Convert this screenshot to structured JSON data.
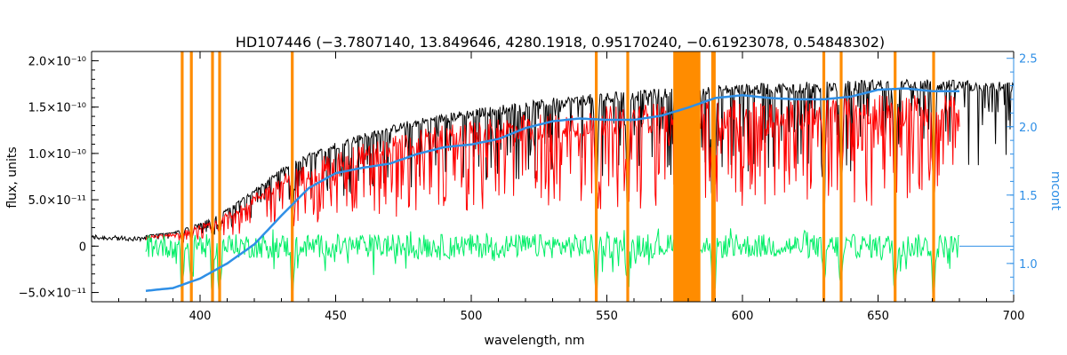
{
  "chart_data": {
    "type": "line",
    "title": "HD107446     (−3.7807140, 13.849646, 4280.1918, 0.95170240, −0.61923078, 0.54848302)",
    "xlabel": "wavelength, nm",
    "ylabel_left": "flux, units",
    "ylabel_right": "mcont",
    "xlim": [
      360,
      700
    ],
    "ylim_left": [
      -6e-11,
      2.1e-10
    ],
    "ylim_right": [
      0.72,
      2.55
    ],
    "x_ticks": [
      "400",
      "450",
      "500",
      "550",
      "600",
      "650",
      "700"
    ],
    "y_ticks_left": [
      "−5.0×10⁻¹¹",
      "0",
      "5.0×10⁻¹¹",
      "1.0×10⁻¹⁰",
      "1.5×10⁻¹⁰",
      "2.0×10⁻¹⁰"
    ],
    "y_tick_values_left": [
      -5e-11,
      0,
      5e-11,
      1e-10,
      1.5e-10,
      2e-10
    ],
    "y_ticks_right": [
      "1.0",
      "1.5",
      "2.0",
      "2.5"
    ],
    "y_tick_values_right": [
      1.0,
      1.5,
      2.0,
      2.5
    ],
    "observed_continuum": {
      "color": "#000000",
      "x": [
        360,
        365,
        370,
        375,
        380,
        390,
        400,
        410,
        420,
        430,
        440,
        450,
        460,
        470,
        480,
        490,
        500,
        510,
        520,
        530,
        540,
        550,
        560,
        570,
        580,
        590,
        600,
        610,
        620,
        630,
        640,
        650,
        660,
        670,
        680,
        690,
        700
      ],
      "top": [
        1.3e-11,
        1.2e-11,
        1.1e-11,
        1e-11,
        1.2e-11,
        1.5e-11,
        2.5e-11,
        4e-11,
        6.2e-11,
        8.4e-11,
        1e-10,
        1.12e-10,
        1.22e-10,
        1.3e-10,
        1.38e-10,
        1.43e-10,
        1.48e-10,
        1.52e-10,
        1.56e-10,
        1.6e-10,
        1.63e-10,
        1.66e-10,
        1.68e-10,
        1.7e-10,
        1.72e-10,
        1.74e-10,
        1.75e-10,
        1.76e-10,
        1.77e-10,
        1.78e-10,
        1.79e-10,
        1.8e-10,
        1.8e-10,
        1.8e-10,
        1.79e-10,
        1.78e-10,
        1.77e-10
      ]
    },
    "model_flux": {
      "color": "#ff0000",
      "x_range": [
        380,
        680
      ]
    },
    "residuals": {
      "color": "#00ee66",
      "x_range": [
        380,
        680
      ],
      "amplitude": 2e-11
    },
    "continuum_fit": {
      "color": "#2f8fe6",
      "axis": "right",
      "x": [
        380,
        390,
        400,
        410,
        420,
        430,
        440,
        450,
        460,
        470,
        480,
        490,
        500,
        510,
        520,
        530,
        540,
        550,
        560,
        570,
        580,
        590,
        600,
        610,
        620,
        630,
        640,
        650,
        660,
        670,
        680
      ],
      "y": [
        0.8,
        0.82,
        0.89,
        1.0,
        1.14,
        1.35,
        1.55,
        1.66,
        1.7,
        1.73,
        1.8,
        1.85,
        1.87,
        1.91,
        1.99,
        2.04,
        2.06,
        2.05,
        2.05,
        2.08,
        2.14,
        2.21,
        2.23,
        2.21,
        2.2,
        2.2,
        2.22,
        2.27,
        2.28,
        2.26,
        2.26
      ]
    },
    "masked_lines": {
      "color": "#ff8c00",
      "x": [
        393.4,
        396.8,
        404.6,
        407.2,
        434.0,
        546.1,
        557.7,
        589.0,
        589.6,
        630.0,
        636.4,
        656.3,
        670.5
      ]
    },
    "masked_band": {
      "color": "#ff8c00",
      "x_range": [
        574.5,
        584.5
      ]
    }
  }
}
